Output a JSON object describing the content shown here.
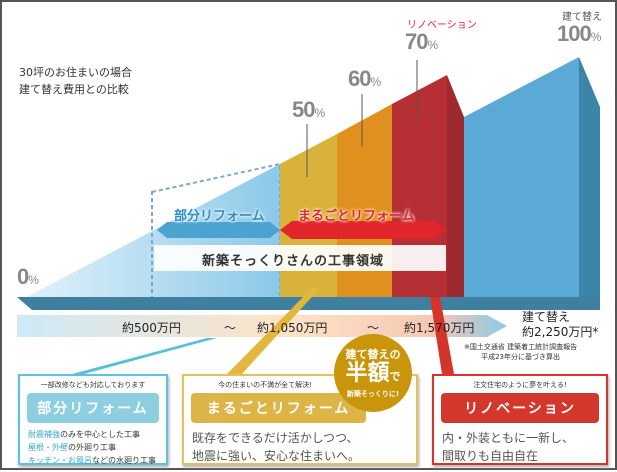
{
  "heading": [
    "30坪のお住まいの場合",
    "建て替え費用との比較"
  ],
  "percent_labels": [
    {
      "value": "0",
      "unit": "%"
    },
    {
      "value": "50",
      "unit": "%"
    },
    {
      "value": "60",
      "unit": "%"
    },
    {
      "value": "70",
      "unit": "%",
      "caption": "リノベーション"
    },
    {
      "value": "100",
      "unit": "%",
      "caption": "建て替え"
    }
  ],
  "arrows": {
    "partial": "部分リフォーム",
    "whole": "まるごとリフォーム",
    "area": "新築そっくりさんの工事領域"
  },
  "prices": {
    "p1": "約500万円",
    "sep": "〜",
    "p2": "約1,050万円",
    "p3": "約1,570万円",
    "rebuild_label": "建て替え",
    "rebuild_price": "約2,250万円*",
    "footnote": [
      "※国土交通省 建築着工統計調査報告",
      "平成23年分に基づき算出"
    ]
  },
  "boxes": [
    {
      "tagline": "一部改修なども対応しております",
      "title": "部分リフォーム",
      "lines": [
        [
          "耐震補強",
          "のみを中心とした工事"
        ],
        [
          "屋根・外壁",
          "の外廻り工事"
        ],
        [
          "キッチン・お風呂",
          "などの水廻り工事"
        ]
      ]
    },
    {
      "tagline": "今の住まいの不満が全て解決!",
      "title": "まるごとリフォーム",
      "body": [
        "既存をできるだけ活かしつつ、",
        "地震に強い、安心な住まいへ。"
      ]
    },
    {
      "tagline": "注文住宅のように夢を叶える!",
      "title": "リノベーション",
      "body": [
        "内・外装ともに一新し、",
        "間取りも自由自在"
      ]
    }
  ],
  "badge": {
    "line1": "建て替えの",
    "big": "半額",
    "de": "で",
    "line3": "新築そっくりに!"
  },
  "colors": {
    "blue": "#5aa9d6",
    "yellow": "#d9b23c",
    "orange": "#e0901f",
    "red": "#b52f35",
    "light": "#8cc9e8"
  }
}
